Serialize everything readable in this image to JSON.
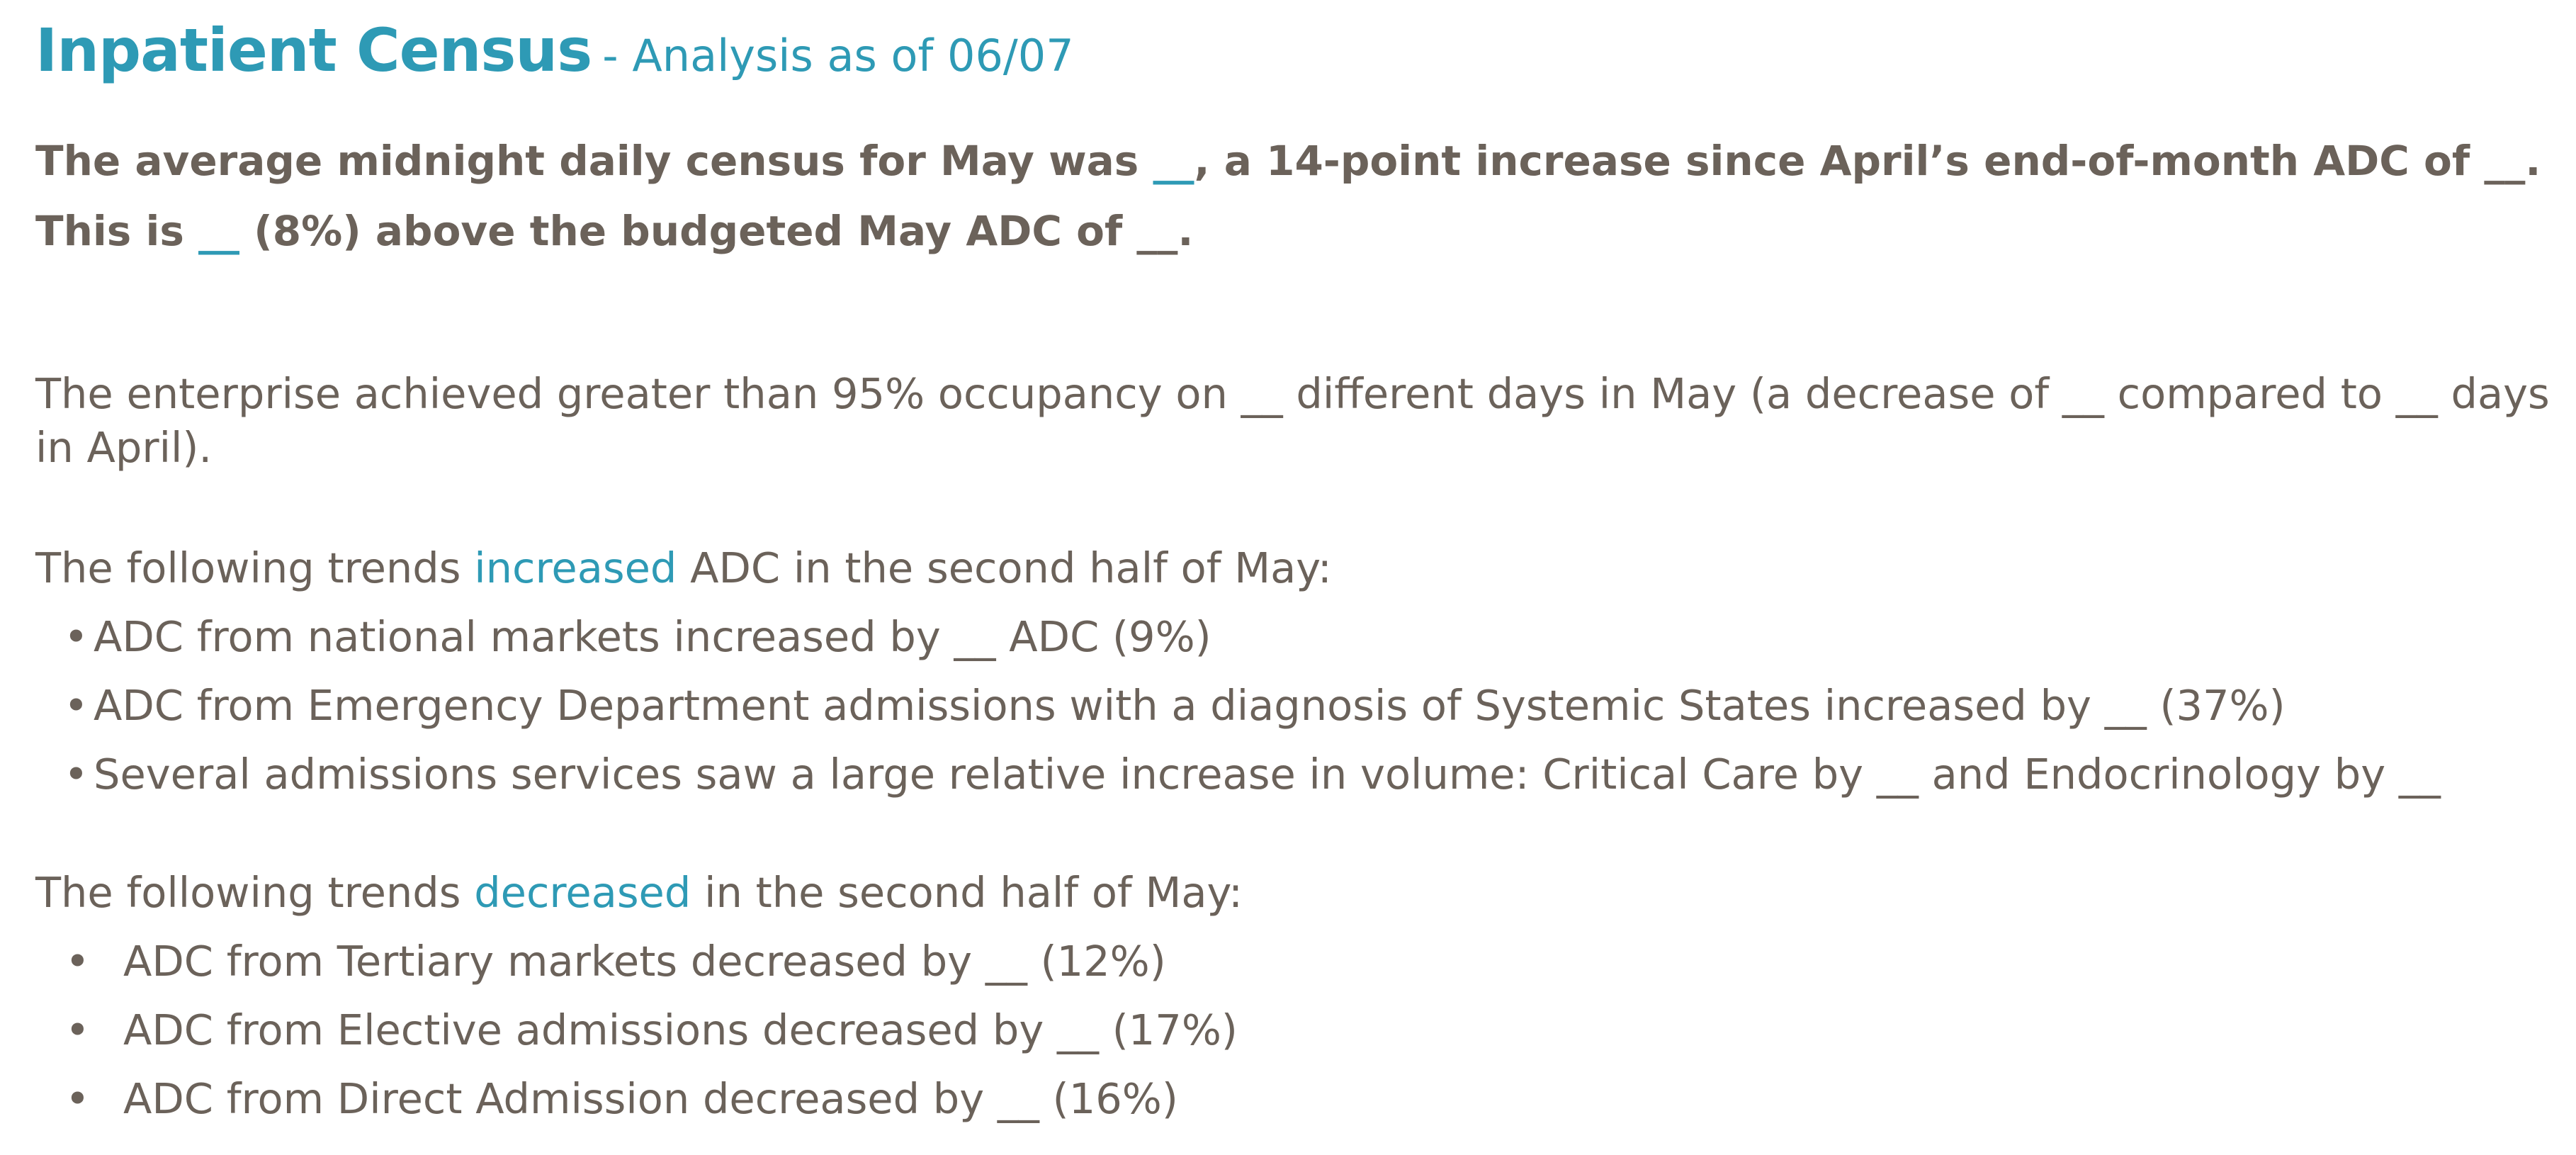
{
  "header": {
    "title": "Inpatient Census",
    "subtitle": "- Analysis as of 06/07"
  },
  "summary": {
    "line1_a": "The average midnight daily census for May was ",
    "line1_blank": "__",
    "line1_b": ", a 14-point increase since April’s end-of-month ADC of __.",
    "line2_a": "This is ",
    "line2_blank": "__",
    "line2_b": " (8%) above the budgeted May ADC of __."
  },
  "occupancy": {
    "text": "The enterprise achieved greater than 95% occupancy on __ different days in May (a decrease of __ compared to __ days in April)."
  },
  "increased_section": {
    "prefix": "The following trends ",
    "keyword": "increased",
    "suffix": " ADC in the second half of May:",
    "bullet": "•",
    "items": [
      "ADC from national markets increased by __ ADC (9%)",
      "ADC from Emergency Department admissions with a diagnosis of Systemic States increased by __ (37%)",
      "Several admissions services saw a large relative increase in volume: Critical Care by __ and Endocrinology by __"
    ]
  },
  "decreased_section": {
    "prefix": "The following trends ",
    "keyword": "decreased",
    "suffix": " in the second half of May:",
    "bullet": "•",
    "items": [
      "ADC from Tertiary markets decreased by __ (12%)",
      "ADC from Elective admissions decreased by __ (17%)",
      "ADC from Direct Admission decreased by __ (16%)"
    ]
  },
  "colors": {
    "accent": "#2e9ab5",
    "body_text": "#6b625a",
    "background": "#ffffff"
  }
}
